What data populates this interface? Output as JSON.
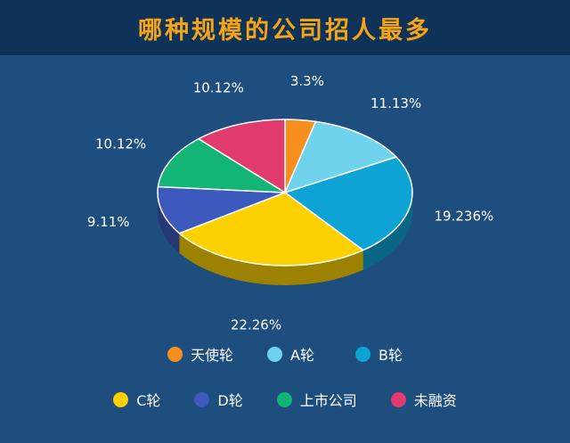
{
  "title": "哪种规模的公司招人最多",
  "chart_data": {
    "type": "pie",
    "title": "哪种规模的公司招人最多",
    "labels": [
      "天使轮",
      "A轮",
      "B轮",
      "C轮",
      "D轮",
      "上市公司",
      "未融资"
    ],
    "value_labels": [
      "3.3%",
      "11.13%",
      "19.236%",
      "22.26%",
      "9.11%",
      "10.12%",
      "10.12%"
    ],
    "values": [
      3.3,
      11.13,
      19.236,
      22.26,
      9.11,
      10.12,
      10.12
    ],
    "colors": [
      "#f78f1e",
      "#6fd3ee",
      "#0da4d5",
      "#fdd000",
      "#3c59bd",
      "#12b575",
      "#e23b6d"
    ],
    "legend_position": "bottom"
  }
}
